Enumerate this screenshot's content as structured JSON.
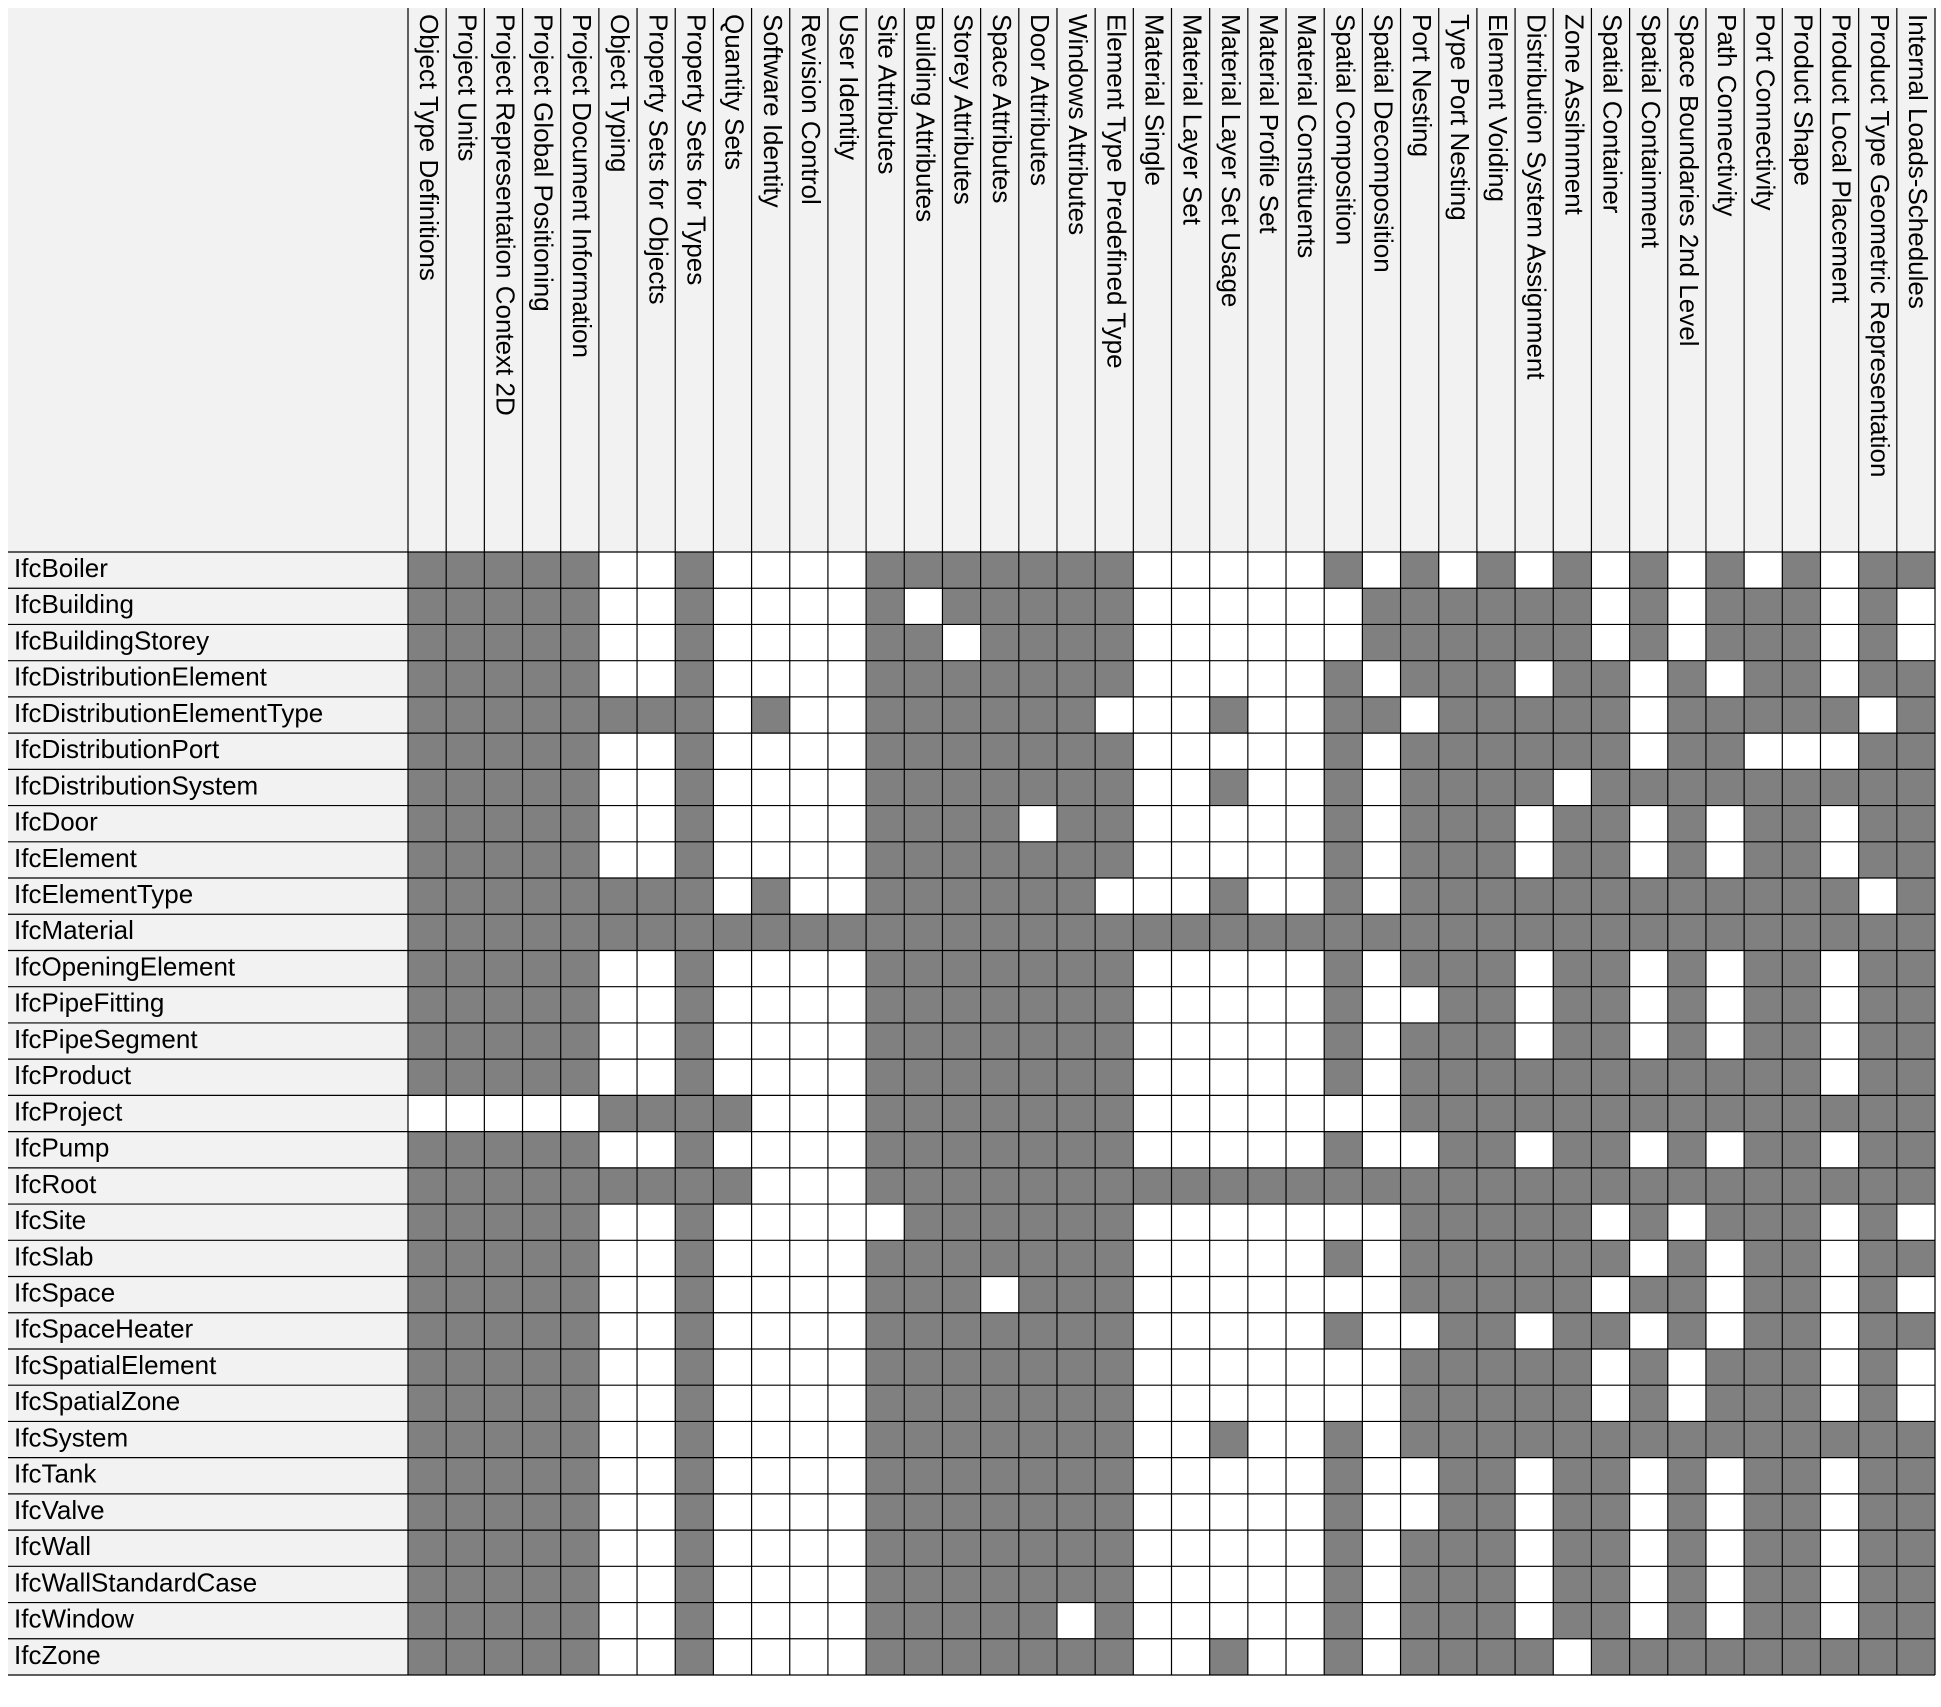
{
  "chart_data": {
    "type": "heatmap",
    "title": "",
    "columns": [
      "Object Type Definitions",
      "Project Units",
      "Project Representation Context 2D",
      "Project Global Positioning",
      "Project Document Information",
      "Object Typing",
      "Property Sets for Objects",
      "Property Sets for Types",
      "Quantity Sets",
      "Software Identity",
      "Revision Control",
      "User Identity",
      "Site Attributes",
      "Building Attributes",
      "Storey Attributes",
      "Space Attributes",
      "Door Attributes",
      "Windows Attributes",
      "Element Type Predefined Type",
      "Material Single",
      "Material Layer Set",
      "Material Layer Set Usage",
      "Material Profile Set",
      "Material Constituents",
      "Spatial Composition",
      "Spatial Decomposition",
      "Port Nesting",
      "Type Port Nesting",
      "Element Voiding",
      "Distribution System Assignment",
      "Zone Assihnment",
      "Spatial Container",
      "Spatial Containment",
      "Space Boundaries 2nd Level",
      "Path Connectivity",
      "Port Connectivity",
      "Product Shape",
      "Product Local Placement",
      "Product Type Geometric Representation",
      "Internal Loads-Schedules"
    ],
    "rows": [
      "IfcBoiler",
      "IfcBuilding",
      "IfcBuildingStorey",
      "IfcDistributionElement",
      "IfcDistributionElementType",
      "IfcDistributionPort",
      "IfcDistributionSystem",
      "IfcDoor",
      "IfcElement",
      "IfcElementType",
      "IfcMaterial",
      "IfcOpeningElement",
      "IfcPipeFitting",
      "IfcPipeSegment",
      "IfcProduct",
      "IfcProject",
      "IfcPump",
      "IfcRoot",
      "IfcSite",
      "IfcSlab",
      "IfcSpace",
      "IfcSpaceHeater",
      "IfcSpatialElement",
      "IfcSpatialZone",
      "IfcSystem",
      "IfcTank",
      "IfcValve",
      "IfcWall",
      "IfcWallStandardCase",
      "IfcWindow",
      "IfcZone"
    ],
    "cells": [
      "1111100100001111111000001010101010101011",
      "1111100100001011111000000111111010111010",
      "1111100100001101111000000111111010111010",
      "1111100100001111111000001011101101011011",
      "1111111101001111110001001101111101111101",
      "1111100100001111111000001011111101100011",
      "1111100100001111111001001011110111111111",
      "1111100100001111011000001011101101011011",
      "1111100100001111111000001011101101011011",
      "1111111101001111110001001011111111111101",
      "1111111111111111111111111111111111111111",
      "1111100100001111111000001011101101011011",
      "1111100100001111111000001001101101011011",
      "1111100100001111111000001011101101011011",
      "1111100100001111111000001011111111111011",
      "0000011110001111111000000011111111111111",
      "1111100100001111111000001001101101011011",
      "1111111110001111111111111111111111111111",
      "1111100100000111111000000011111010111010",
      "1111100100001111111000001011111101011011",
      "1111100100001110111000000011111011011010",
      "1111100100001111111000001001101101011011",
      "1111100100001111111000000011111010111010",
      "1111100100001111111000000011111010111010",
      "1111100100001111111001001011111111111111",
      "1111100100001111111000001001101101011011",
      "1111100100001111111000001001101101011011",
      "1111100100001111111000001011101101011011",
      "1111100100001111111000001011101101011011",
      "1111100100001111101000001011101101011011",
      "1111100100001111111001001011110111111111"
    ],
    "legend": [],
    "colors": {
      "filled": "#808080",
      "empty": "#ffffff",
      "header_bg": "#f2f2f2",
      "grid": "#000000"
    }
  }
}
